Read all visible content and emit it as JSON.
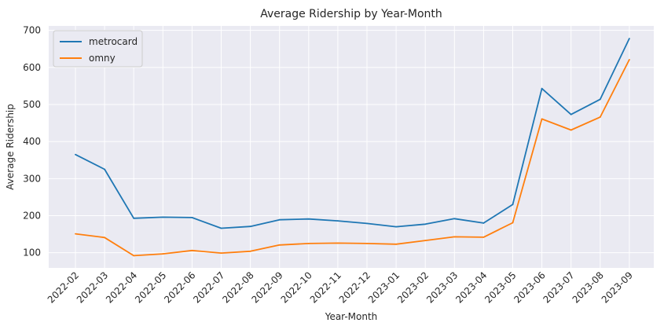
{
  "chart_data": {
    "type": "line",
    "title": "Average Ridership by Year-Month",
    "xlabel": "Year-Month",
    "ylabel": "Average Ridership",
    "categories": [
      "2022-02",
      "2022-03",
      "2022-04",
      "2022-05",
      "2022-06",
      "2022-07",
      "2022-08",
      "2022-09",
      "2022-10",
      "2022-11",
      "2022-12",
      "2023-01",
      "2023-02",
      "2023-03",
      "2023-04",
      "2023-05",
      "2023-06",
      "2023-07",
      "2023-08",
      "2023-09"
    ],
    "ylim": [
      59,
      712
    ],
    "yticks": [
      100,
      200,
      300,
      400,
      500,
      600,
      700
    ],
    "grid": true,
    "legend_position": "top-left",
    "series": [
      {
        "name": "metrocard",
        "color": "#1f77b4",
        "values": [
          365,
          325,
          193,
          196,
          195,
          166,
          171,
          189,
          191,
          186,
          179,
          170,
          177,
          192,
          180,
          230,
          543,
          473,
          514,
          678
        ]
      },
      {
        "name": "omny",
        "color": "#ff7f0e",
        "values": [
          151,
          141,
          92,
          97,
          106,
          99,
          104,
          121,
          125,
          126,
          125,
          123,
          133,
          143,
          142,
          181,
          461,
          431,
          466,
          621
        ]
      }
    ]
  }
}
